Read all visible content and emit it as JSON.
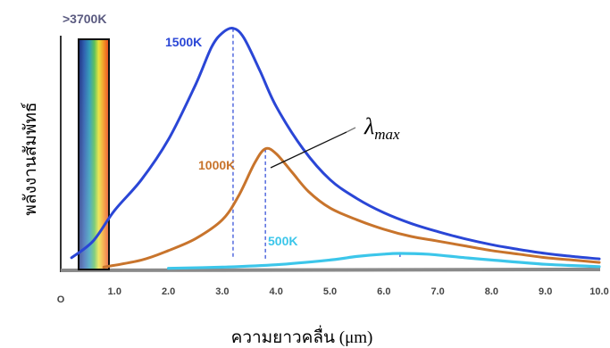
{
  "chart_data": {
    "type": "line",
    "xlabel": "ความยาวคลื่น (μm)",
    "ylabel": "พลังงานสัมพัทธ์",
    "xlim": [
      0,
      10
    ],
    "x_ticks": [
      "O",
      "1.0",
      "2.0",
      "3.0",
      "4.0",
      "5.0",
      "6.0",
      "7.0",
      "8.0",
      "9.0",
      "10.0"
    ],
    "visible_band_label": ">3700K",
    "annotation": {
      "symbol": "λ",
      "subscript": "max"
    },
    "series": [
      {
        "name": "1500K",
        "color": "#2a46d6",
        "peak_x": 3.2,
        "x": [
          0.2,
          0.6,
          1.0,
          1.5,
          2.0,
          2.5,
          2.8,
          3.0,
          3.2,
          3.4,
          3.7,
          4.0,
          4.5,
          5.0,
          5.5,
          6.0,
          6.5,
          7.0,
          7.5,
          8.0,
          8.5,
          9.0,
          9.5,
          10.0
        ],
        "y": [
          0.05,
          0.12,
          0.25,
          0.38,
          0.55,
          0.78,
          0.94,
          1.0,
          1.02,
          0.98,
          0.84,
          0.69,
          0.51,
          0.38,
          0.3,
          0.24,
          0.195,
          0.16,
          0.13,
          0.105,
          0.085,
          0.068,
          0.055,
          0.045
        ]
      },
      {
        "name": "1000K",
        "color": "#c8742c",
        "peak_x": 3.8,
        "x": [
          0.8,
          1.5,
          2.0,
          2.5,
          3.0,
          3.3,
          3.6,
          3.8,
          4.0,
          4.3,
          4.6,
          5.0,
          5.5,
          6.0,
          6.5,
          7.0,
          7.5,
          8.0,
          8.5,
          9.0,
          9.5,
          10.0
        ],
        "y": [
          0.01,
          0.04,
          0.08,
          0.13,
          0.21,
          0.31,
          0.45,
          0.51,
          0.49,
          0.41,
          0.33,
          0.26,
          0.21,
          0.17,
          0.14,
          0.12,
          0.1,
          0.08,
          0.065,
          0.05,
          0.04,
          0.03
        ]
      },
      {
        "name": "500K",
        "color": "#3cc6ea",
        "peak_x": 6.3,
        "x": [
          2.0,
          3.0,
          4.0,
          5.0,
          5.5,
          6.0,
          6.3,
          6.8,
          7.5,
          8.0,
          9.0,
          10.0
        ],
        "y": [
          0.005,
          0.01,
          0.02,
          0.04,
          0.055,
          0.065,
          0.068,
          0.065,
          0.05,
          0.04,
          0.022,
          0.012
        ]
      }
    ]
  }
}
